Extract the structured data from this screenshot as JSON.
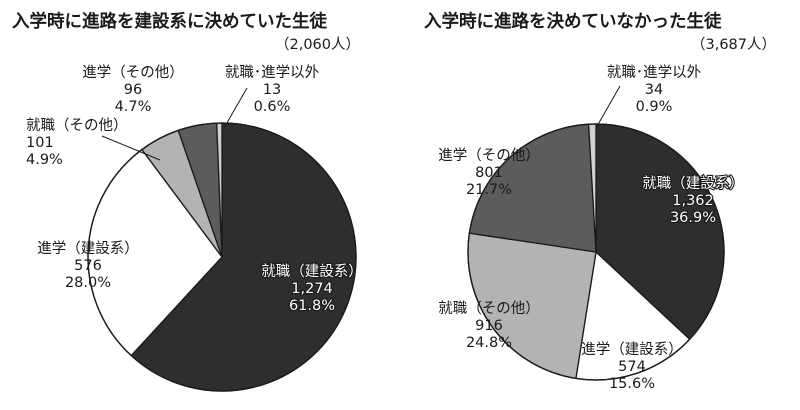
{
  "colors": {
    "kensetsu_shushoku": "#2e2e2e",
    "kensetsu_shingaku": "#ffffff",
    "sonota_shushoku": "#b3b3b3",
    "sonota_shingaku": "#5c5c5c",
    "shushoku_shingaku_igai": "#d0d0d0",
    "outline": "#1a1a1a"
  },
  "chart_data": [
    {
      "type": "pie",
      "title": "入学時に進路を建設系に決めていた生徒",
      "total_label": "（2,060人）",
      "slices": [
        {
          "name": "就職（建設系）",
          "count": "1,274",
          "value": 1274,
          "percent": "61.8%",
          "color": "#2e2e2e"
        },
        {
          "name": "進学（建設系）",
          "count": "576",
          "value": 576,
          "percent": "28.0%",
          "color": "#ffffff"
        },
        {
          "name": "就職（その他）",
          "count": "101",
          "value": 101,
          "percent": "4.9%",
          "color": "#b3b3b3"
        },
        {
          "name": "進学（その他）",
          "count": "96",
          "value": 96,
          "percent": "4.7%",
          "color": "#5c5c5c"
        },
        {
          "name": "就職･進学以外",
          "count": "13",
          "value": 13,
          "percent": "0.6%",
          "color": "#d0d0d0"
        }
      ]
    },
    {
      "type": "pie",
      "title": "入学時に進路を決めていなかった生徒",
      "total_label": "（3,687人）",
      "slices": [
        {
          "name": "就職（建設系）",
          "count": "1,362",
          "value": 1362,
          "percent": "36.9%",
          "color": "#2e2e2e"
        },
        {
          "name": "進学（建設系）",
          "count": "574",
          "value": 574,
          "percent": "15.6%",
          "color": "#ffffff"
        },
        {
          "name": "就職（その他）",
          "count": "916",
          "value": 916,
          "percent": "24.8%",
          "color": "#b3b3b3"
        },
        {
          "name": "進学（その他）",
          "count": "801",
          "value": 801,
          "percent": "21.7%",
          "color": "#5c5c5c"
        },
        {
          "name": "就職･進学以外",
          "count": "34",
          "value": 34,
          "percent": "0.9%",
          "color": "#d0d0d0"
        }
      ]
    }
  ]
}
